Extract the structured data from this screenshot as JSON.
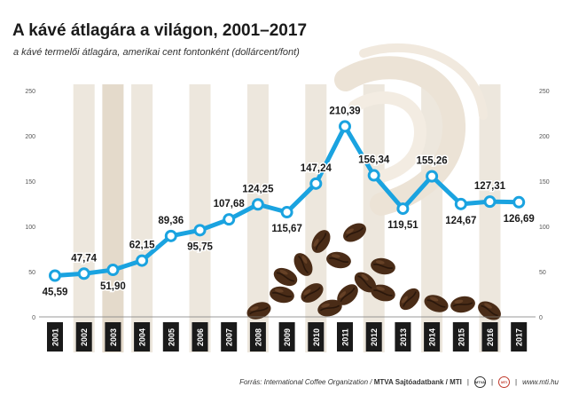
{
  "title": "A kávé átlagára a világon, 2001–2017",
  "subtitle": "a kávé termelői átlagára, amerikai cent fontonként (dollárcent/font)",
  "footer": {
    "source_prefix": "Forrás: International Coffee Organization / ",
    "agency": "MTVA Sajtóadatbank / MTI",
    "logo1": "MTVA",
    "logo2": "MTI",
    "website": "www.mti.hu"
  },
  "colors": {
    "line": "#1aa3e0",
    "stripe": "#ede7dd",
    "category_bar": "#1a1a1a",
    "beans": "#4a2c17"
  },
  "chart_data": {
    "type": "line",
    "title": "A kávé átlagára a világon, 2001–2017",
    "categories": [
      "2001",
      "2002",
      "2003",
      "2004",
      "2005",
      "2006",
      "2007",
      "2008",
      "2009",
      "2010",
      "2011",
      "2012",
      "2013",
      "2014",
      "2015",
      "2016",
      "2017"
    ],
    "values": [
      45.59,
      47.74,
      51.9,
      62.15,
      89.36,
      95.75,
      107.68,
      124.25,
      115.67,
      147.24,
      210.39,
      156.34,
      119.51,
      155.26,
      124.67,
      127.31,
      126.69
    ],
    "value_labels": [
      "45,59",
      "47,74",
      "51,90",
      "62,15",
      "89,36",
      "95,75",
      "107,68",
      "124,25",
      "115,67",
      "147,24",
      "210,39",
      "156,34",
      "119,51",
      "155,26",
      "124,67",
      "127,31",
      "126,69"
    ],
    "yticks": [
      "0",
      "50",
      "100",
      "150",
      "200",
      "250"
    ],
    "ylim": [
      0,
      250
    ],
    "grid": false,
    "y_axis_sides": "both",
    "xlabel": "",
    "ylabel": ""
  }
}
